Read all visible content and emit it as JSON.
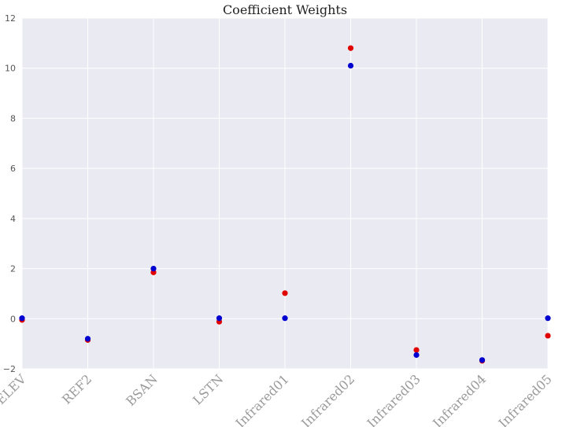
{
  "chart_data": {
    "type": "scatter",
    "title": "Coefficient Weights",
    "xlabel": "",
    "ylabel": "",
    "categories": [
      "ELEV",
      "REF2",
      "BSAN",
      "LSTN",
      "Infrared01",
      "Infrared02",
      "Infrared03",
      "Infrared04",
      "Infrared05"
    ],
    "ylim": [
      -2,
      12
    ],
    "yticks": [
      "−2",
      "0",
      "2",
      "4",
      "6",
      "8",
      "10",
      "12"
    ],
    "grid": true,
    "legend": "none",
    "series": [
      {
        "color": "#e00000",
        "values": [
          -0.05,
          -0.85,
          1.85,
          -0.12,
          1.02,
          10.8,
          -1.25,
          -1.68,
          -0.68
        ]
      },
      {
        "color": "#0000d0",
        "values": [
          0.02,
          -0.8,
          2.0,
          0.02,
          0.02,
          10.1,
          -1.45,
          -1.65,
          0.02
        ]
      }
    ],
    "colors": {
      "plot_bg": "#eaeaf2",
      "grid": "#ffffff"
    }
  }
}
